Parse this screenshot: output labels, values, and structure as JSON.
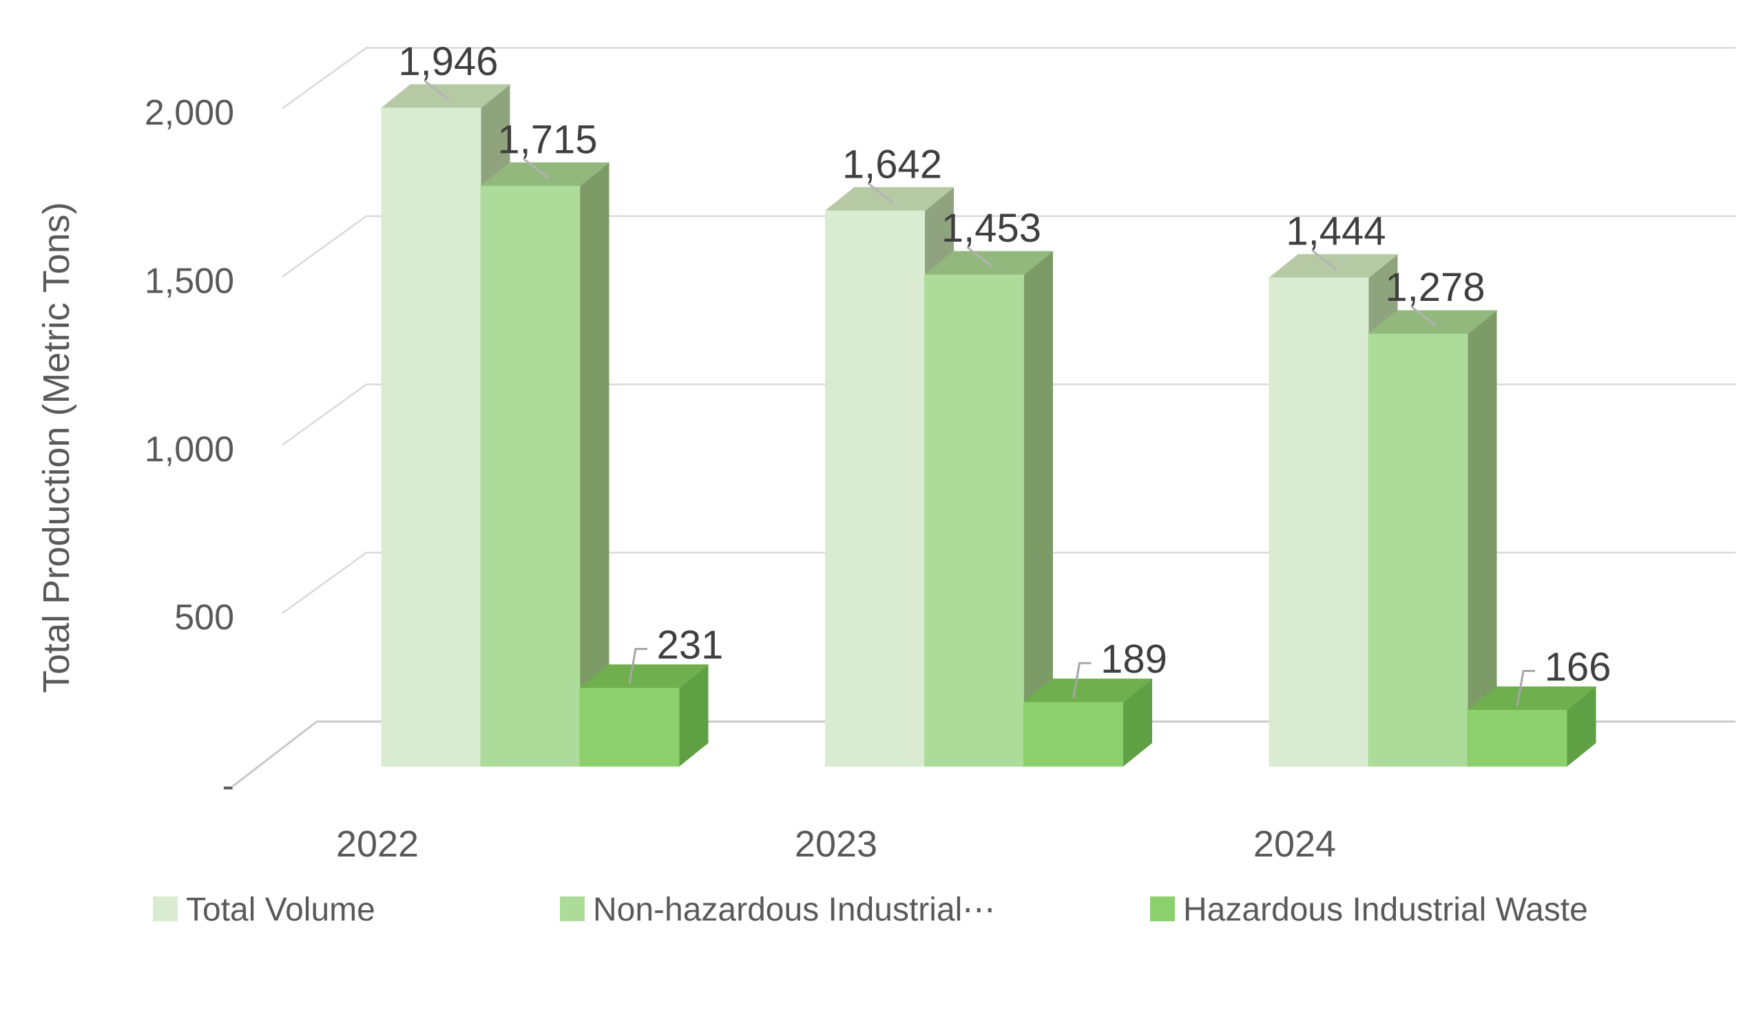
{
  "chart_data": {
    "type": "bar",
    "variant": "3d-clustered-column",
    "title": "",
    "xlabel": "",
    "ylabel": "Total Production (Metric Tons)",
    "categories": [
      "2022",
      "2023",
      "2024"
    ],
    "series": [
      {
        "name": "Total Volume",
        "legend_label": "Total Volume",
        "values": [
          1946,
          1642,
          1444
        ],
        "color_front": "#d9ecd1",
        "color_top": "#b6c9a5",
        "color_side": "#8fa47e"
      },
      {
        "name": "Non-hazardous Industrial Waste",
        "legend_label": "Non-hazardous Industrial⋯",
        "values": [
          1715,
          1453,
          1278
        ],
        "color_front": "#addb99",
        "color_top": "#93b87d",
        "color_side": "#7c9b66"
      },
      {
        "name": "Hazardous Industrial Waste",
        "legend_label": "Hazardous Industrial Waste",
        "values": [
          231,
          189,
          166
        ],
        "color_front": "#8bd06d",
        "color_top": "#70af4e",
        "color_side": "#60a044"
      }
    ],
    "data_labels": [
      [
        "1,946",
        "1,642",
        "1,444"
      ],
      [
        "1,715",
        "1,453",
        "1,278"
      ],
      [
        "231",
        "189",
        "166"
      ]
    ],
    "y_ticks": [
      {
        "value": 2000,
        "label": "2,000"
      },
      {
        "value": 1500,
        "label": "1,500"
      },
      {
        "value": 1000,
        "label": "1,000"
      },
      {
        "value": 500,
        "label": "500"
      },
      {
        "value": 0,
        "label": "-"
      }
    ],
    "ylim": [
      0,
      2000
    ],
    "grid": true,
    "legend_position": "bottom",
    "colors": {
      "background": "#ffffff",
      "gridline": "#d9d9d9",
      "floor_line": "#c9c9c9",
      "tick_text": "#595959",
      "axis_title_text": "#595959",
      "category_text": "#595959",
      "legend_text": "#595959",
      "data_label_text": "#3f3f3f",
      "leader_line": "#a6a6a6",
      "top_face_streak": "#b3b3b3"
    }
  }
}
